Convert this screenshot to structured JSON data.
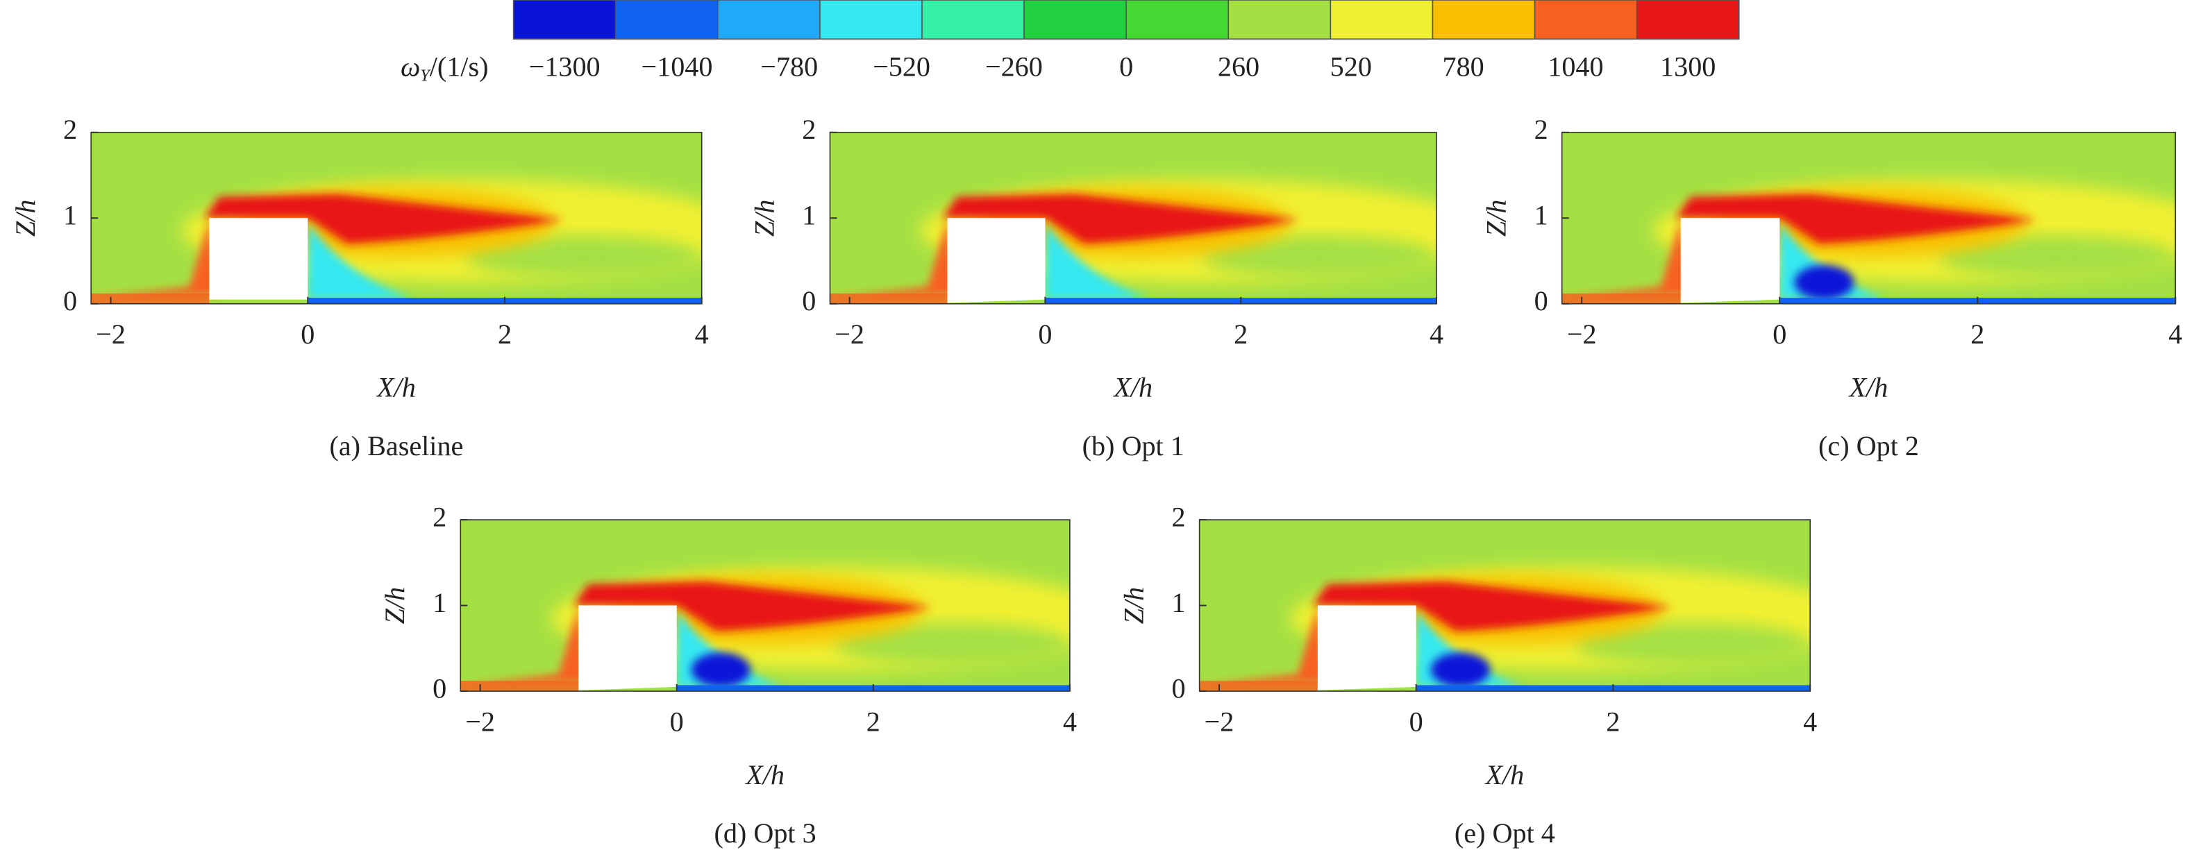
{
  "colorbar": {
    "label": {
      "symbol": "ω",
      "subscript": "Y",
      "unit": "/(1/s)"
    },
    "levels": [
      {
        "value": -1300,
        "label": "−1300"
      },
      {
        "value": -1040,
        "label": "−1040"
      },
      {
        "value": -780,
        "label": "−780"
      },
      {
        "value": -520,
        "label": "−520"
      },
      {
        "value": -260,
        "label": "−260"
      },
      0,
      260,
      520,
      780,
      1040,
      1300
    ],
    "colors": [
      "#0a14d8",
      "#1062f0",
      "#22a8f8",
      "#34e8f0",
      "#34f0a4",
      "#22d040",
      "#46d832",
      "#a4e044",
      "#f0f032",
      "#f8c000",
      "#f86020",
      "#e81818"
    ]
  },
  "chart_data": [
    {
      "type": "contour",
      "caption": "(a) Baseline",
      "xlabel": "X/h",
      "ylabel": "Z/h",
      "xlim": [
        -2.2,
        4
      ],
      "ylim": [
        0,
        2
      ],
      "xticks": [
        {
          "value": -2,
          "label": "−2"
        },
        0,
        2,
        4
      ],
      "yticks": [
        0,
        1,
        2
      ]
    },
    {
      "type": "contour",
      "caption": "(b) Opt 1",
      "xlabel": "X/h",
      "ylabel": "Z/h",
      "xlim": [
        -2.2,
        4
      ],
      "ylim": [
        0,
        2
      ],
      "xticks": [
        {
          "value": -2,
          "label": "−2"
        },
        0,
        2,
        4
      ],
      "yticks": [
        0,
        1,
        2
      ]
    },
    {
      "type": "contour",
      "caption": "(c) Opt 2",
      "xlabel": "X/h",
      "ylabel": "Z/h",
      "xlim": [
        -2.2,
        4
      ],
      "ylim": [
        0,
        2
      ],
      "xticks": [
        {
          "value": -2,
          "label": "−2"
        },
        0,
        2,
        4
      ],
      "yticks": [
        0,
        1,
        2
      ]
    },
    {
      "type": "contour",
      "caption": "(d) Opt 3",
      "xlabel": "X/h",
      "ylabel": "Z/h",
      "xlim": [
        -2.2,
        4
      ],
      "ylim": [
        0,
        2
      ],
      "xticks": [
        {
          "value": -2,
          "label": "−2"
        },
        0,
        2,
        4
      ],
      "yticks": [
        0,
        1,
        2
      ]
    },
    {
      "type": "contour",
      "caption": "(e) Opt 4",
      "xlabel": "X/h",
      "ylabel": "Z/h",
      "xlim": [
        -2.2,
        4
      ],
      "ylim": [
        0,
        2
      ],
      "xticks": [
        {
          "value": -2,
          "label": "−2"
        },
        0,
        2,
        4
      ],
      "yticks": [
        0,
        1,
        2
      ]
    }
  ]
}
